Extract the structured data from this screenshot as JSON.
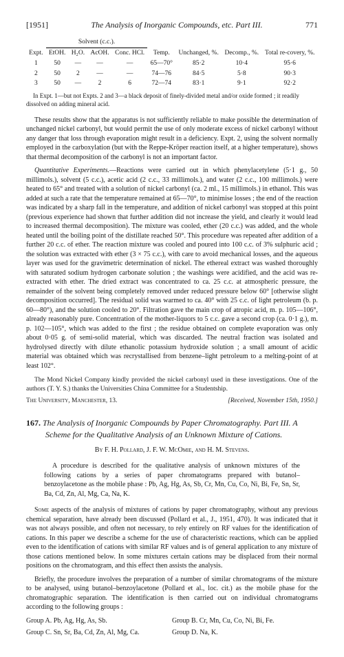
{
  "header": {
    "year": "[1951]",
    "title": "The Analysis of Inorganic Compounds, etc.  Part III.",
    "page": "771"
  },
  "table": {
    "solvent_head": "Solvent (c.c.).",
    "cols": [
      "Expt.",
      "EtOH.",
      "H₂O.",
      "AcOH.",
      "Conc. HCl.",
      "Temp.",
      "Unchanged, %.",
      "Decomp., %.",
      "Total re-covery, %."
    ],
    "rows": [
      [
        "1",
        "50",
        "—",
        "—",
        "—",
        "65—70°",
        "85·2",
        "10·4",
        "95·6"
      ],
      [
        "2",
        "50",
        "2",
        "—",
        "—",
        "74—76",
        "84·5",
        "5·8",
        "90·3"
      ],
      [
        "3",
        "50",
        "—",
        "2",
        "6",
        "72—74",
        "83·1",
        "9·1",
        "92·2"
      ]
    ]
  },
  "footnote": "In Expt. 1—but not Expts. 2 and 3—a black deposit of finely-divided metal and/or oxide formed ; it readily dissolved on adding mineral acid.",
  "para1": "These results show that the apparatus is not sufficiently reliable to make possible the determination of unchanged nickel carbonyl, but would permit the use of only moderate excess of nickel carbonyl without any danger that loss through evaporation might result in a deficiency. Expt. 2, using the solvent normally employed in the carboxylation (but with the Reppe-Kröper reaction itself, at a higher temperature), shows that thermal decomposition of the carbonyl is not an important factor.",
  "para2_lead": "Quantitative Experiments.",
  "para2": "—Reactions were carried out in which phenylacetylene (5·1 g., 50 millimols.), solvent (5 c.c.), acetic acid (2 c.c., 33 millimols.), and water (2 c.c., 100 millimols.) were heated to 65° and treated with a solution of nickel carbonyl (ca. 2 ml., 15 millimols.) in ethanol. This was added at such a rate that the temperature remained at 65—70°, to minimise losses ; the end of the reaction was indicated by a sharp fall in the temperature, and addition of nickel carbonyl was stopped at this point (previous experience had shown that further addition did not increase the yield, and clearly it would lead to increased thermal decomposition). The mixture was cooled, ether (20 c.c.) was added, and the whole heated until the boiling point of the distillate reached 50°. This procedure was repeated after addition of a further 20 c.c. of ether. The reaction mixture was cooled and poured into 100 c.c. of 3% sulphuric acid ; the solution was extracted with ether (3 × 75 c.c.), with care to avoid mechanical losses, and the aqueous layer was used for the gravimetric determination of nickel. The ethereal extract was washed thoroughly with saturated sodium hydrogen carbonate solution ; the washings were acidified, and the acid was re-extracted with ether. The dried extract was concentrated to ca. 25 c.c. at atmospheric pressure, the remainder of the solvent being completely removed under reduced pressure below 60° [otherwise slight decomposition occurred]. The residual solid was warmed to ca. 40° with 25 c.c. of light petroleum (b. p. 60—80°), and the solution cooled to 20°. Filtration gave the main crop of atropic acid, m. p. 105—106°, already reasonably pure. Concentration of the mother-liquors to 5 c.c. gave a second crop (ca. 0·1 g.), m. p. 102—105°, which was added to the first ; the residue obtained on complete evaporation was only about 0·05 g. of semi-solid material, which was discarded. The neutral fraction was isolated and hydrolysed directly with dilute ethanolic potassium hydroxide solution ; a small amount of acidic material was obtained which was recrystallised from benzene–light petroleum to a melting-point of at least 102°.",
  "ack": "The Mond Nickel Company kindly provided the nickel carbonyl used in these investigations. One of the authors (T. Y. S.) thanks the Universities China Committee for a Studentship.",
  "affil": {
    "left": "The University, Manchester, 13.",
    "right": "[Received, November 15th, 1950.]"
  },
  "article": {
    "num": "167.",
    "title": "The Analysis of Inorganic Compounds by Paper Chromatography. Part III. A Scheme for the Qualitative Analysis of an Unknown Mixture of Cations.",
    "authors": "By F. H. Pollard, J. F. W. McOmie, and H. M. Stevens."
  },
  "abstract": {
    "p1": "A procedure is described for the qualitative analysis of unknown mixtures of the following cations by a series of paper chromatograms prepared with butanol–benzoylacetone as the mobile phase : Pb, Ag, Hg, As, Sb, Cr, Mn, Cu, Co, Ni, Bi, Fe, Sn, Sr, Ba, Cd, Zn, Al, Mg, Ca, Na, K."
  },
  "body1_lead": "Some",
  "body1": " aspects of the analysis of mixtures of cations by paper chromatography, without any previous chemical separation, have already been discussed (Pollard et al., J., 1951, 470). It was indicated that it was not always possible, and often not necessary, to rely entirely on RF values for the identification of cations. In this paper we describe a scheme for the use of characteristic reactions, which can be applied even to the identification of cations with similar RF values and is of general application to any mixture of those cations mentioned below. In some mixtures certain cations may be displaced from their normal positions on the chromatogram, and this effect then assists the analysis.",
  "body2": "Briefly, the procedure involves the preparation of a number of similar chromatograms of the mixture to be analysed, using butanol–benzoylacetone (Pollard et al., loc. cit.) as the mobile phase for the chromatographic separation. The identification is then carried out on individual chromatograms according to the following groups :",
  "groups": {
    "a_label": "Group A.",
    "a_val": "Pb, Ag, Hg, As, Sb.",
    "b_label": "Group B.",
    "b_val": "Cr, Mn, Cu, Co, Ni, Bi, Fe.",
    "c_label": "Group C.",
    "c_val": "Sn, Sr, Ba, Cd, Zn, Al, Mg, Ca.",
    "d_label": "Group D.",
    "d_val": "Na, K."
  }
}
